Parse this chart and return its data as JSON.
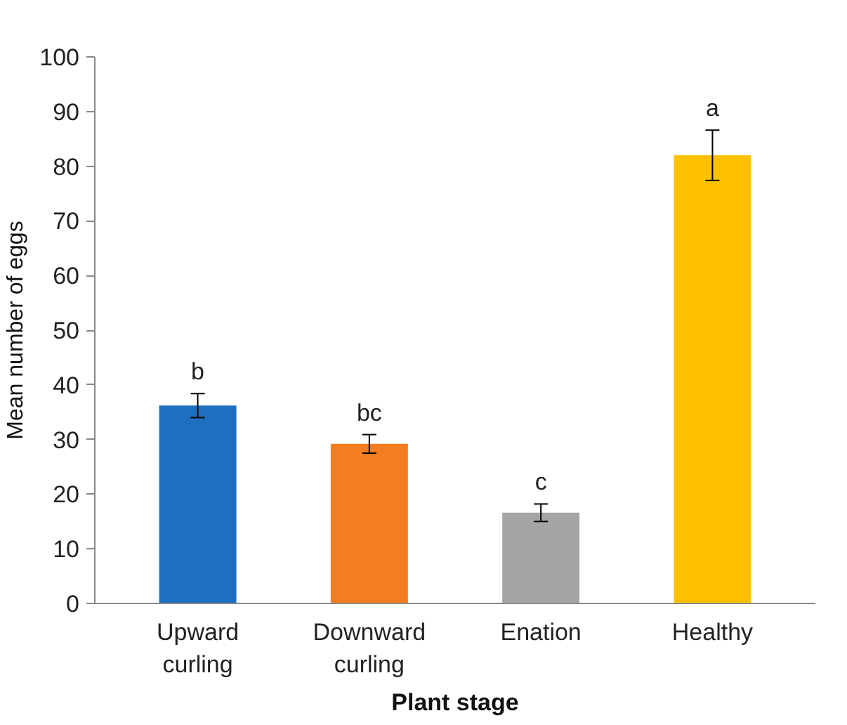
{
  "chart_data": {
    "type": "bar",
    "xlabel": "Plant stage",
    "ylabel": "Mean number of eggs",
    "categories": [
      "Upward curling",
      "Downward curling",
      "Enation",
      "Healthy"
    ],
    "values": [
      36.2,
      29.2,
      16.6,
      82.0
    ],
    "colors": [
      "#1f6fc1",
      "#f57d21",
      "#a5a5a5",
      "#ffc000"
    ],
    "errors": [
      2.2,
      1.7,
      1.6,
      4.6
    ],
    "ylim": [
      0,
      100
    ],
    "yticks": [
      0,
      10,
      20,
      30,
      40,
      50,
      60,
      70,
      80,
      90,
      100
    ],
    "grid": false,
    "annotations": [
      {
        "text": "b",
        "x": "Upward curling",
        "y": 38.4
      },
      {
        "text": "bc",
        "x": "Downward curling",
        "y": 30.9
      },
      {
        "text": "c",
        "x": "Enation",
        "y": 18.2
      },
      {
        "text": "a",
        "x": "Healthy",
        "y": 86.6
      }
    ]
  }
}
